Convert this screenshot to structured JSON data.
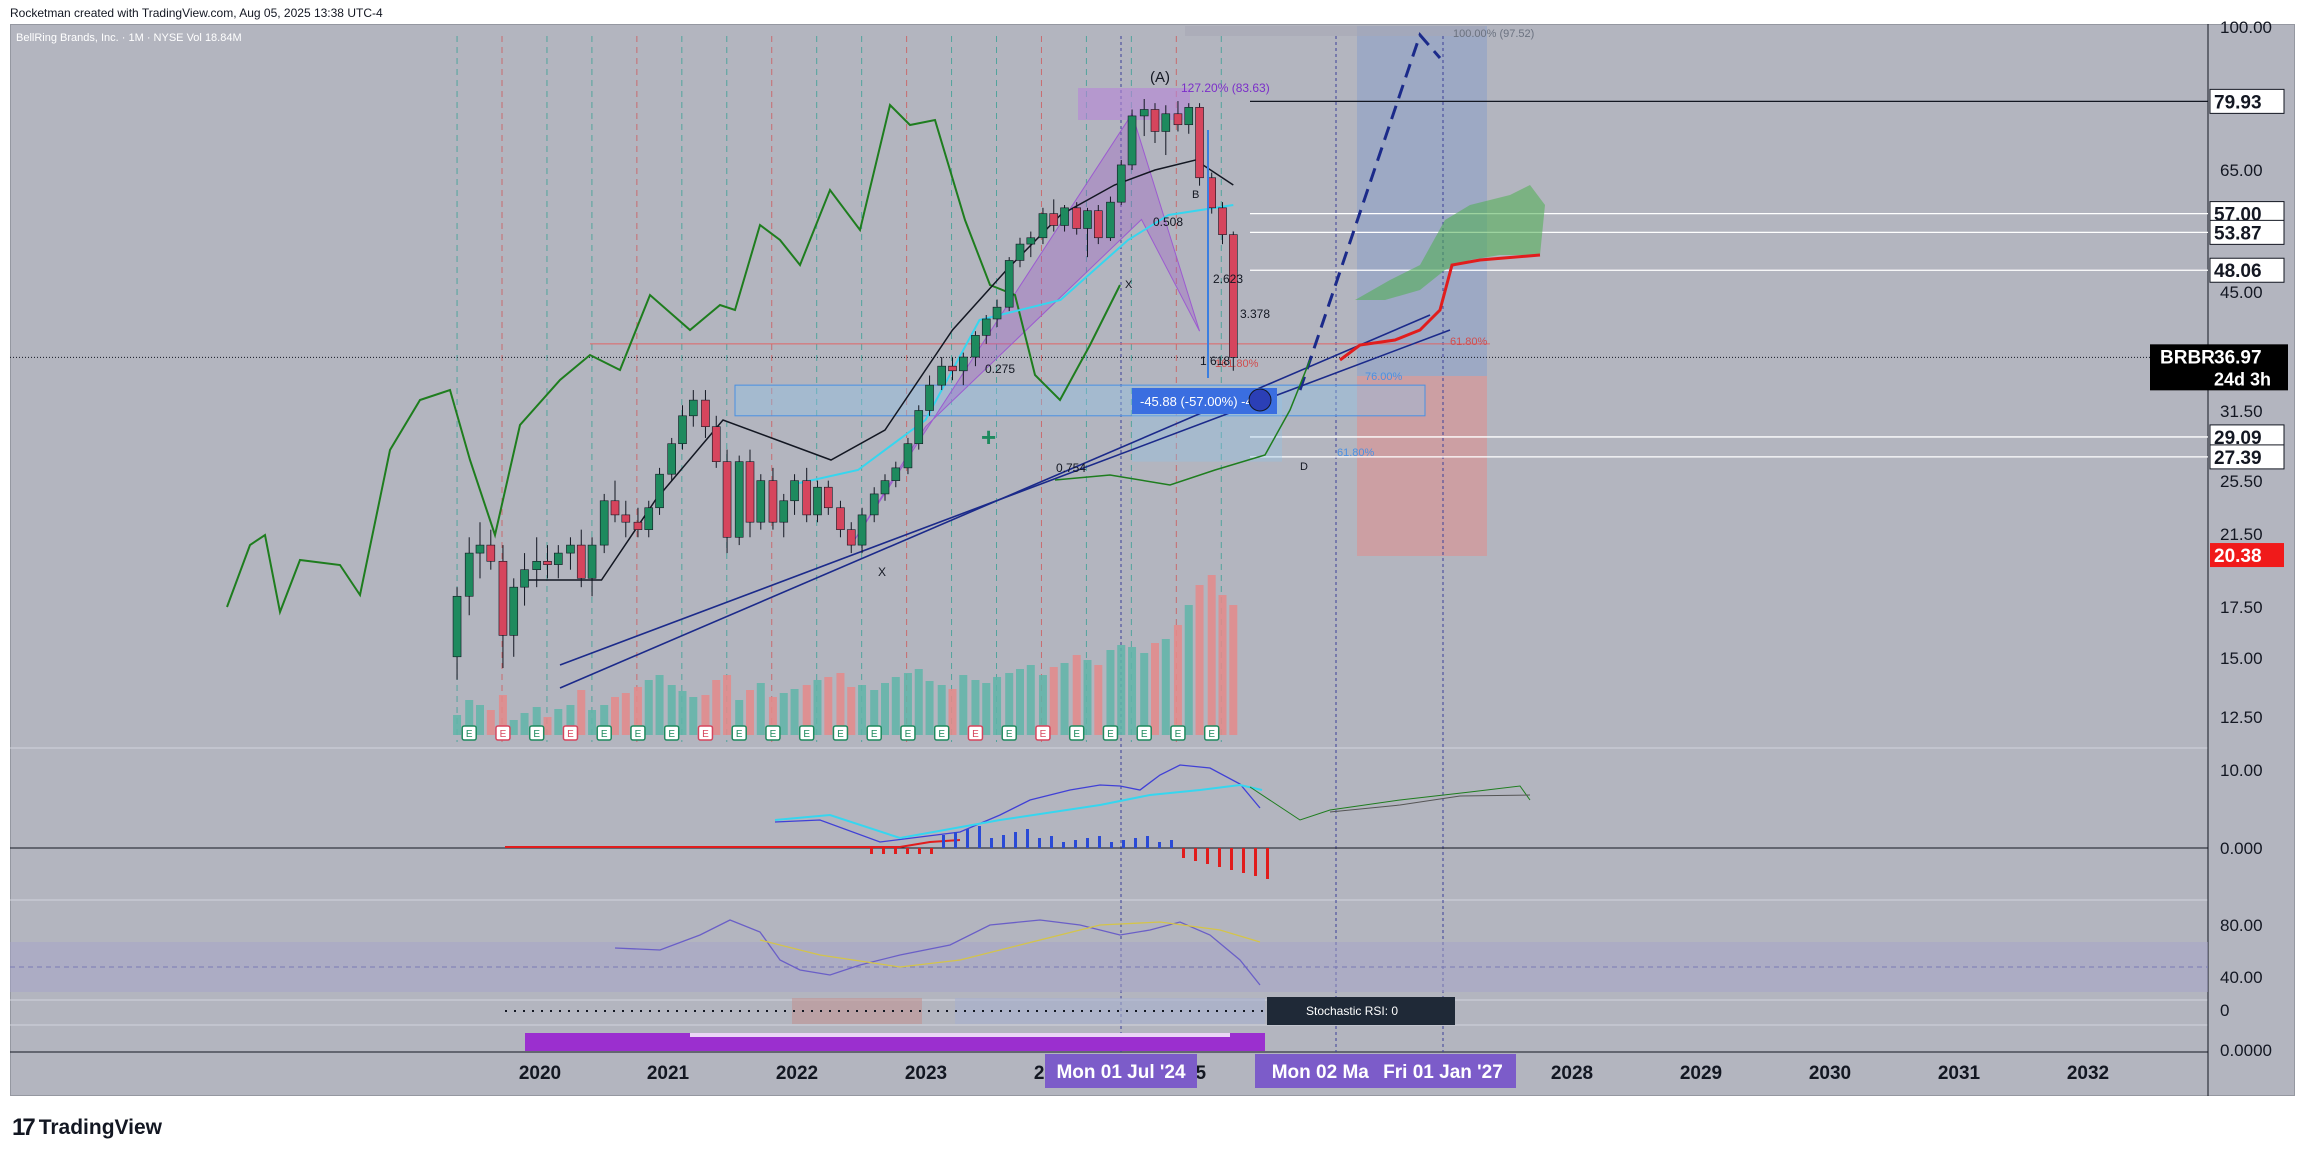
{
  "header": {
    "attribution": "Rocketman created with TradingView.com, Aug 05, 2025 13:38 UTC-4"
  },
  "symbol_info": {
    "name": "BellRing Brands, Inc. · 1M · NYSE",
    "volume_label": "Vol",
    "volume_value": "18.84M"
  },
  "brand": {
    "name": "TradingView"
  },
  "chart_data": {
    "type": "candlestick",
    "ticker": "BRBR",
    "x_ticks": [
      "2020",
      "2021",
      "2022",
      "2023",
      "2024",
      "2025",
      "2028",
      "2029",
      "2030",
      "2031",
      "2032"
    ],
    "price_axis_ticks": [
      "100.00",
      "65.00",
      "45.00",
      "31.50",
      "25.50",
      "21.50",
      "17.50",
      "15.00",
      "12.50"
    ],
    "price_badges": [
      {
        "label": "79.93",
        "value": 79.93,
        "style": "white"
      },
      {
        "label": "57.00",
        "value": 57.0,
        "style": "white"
      },
      {
        "label": "53.87",
        "value": 53.87,
        "style": "white"
      },
      {
        "label": "48.06",
        "value": 48.06,
        "style": "white"
      },
      {
        "label": "36.97",
        "value": 36.97,
        "style": "black",
        "ticker": "BRBR",
        "countdown": "24d 3h"
      },
      {
        "label": "29.09",
        "value": 29.09,
        "style": "white"
      },
      {
        "label": "27.39",
        "value": 27.39,
        "style": "white"
      },
      {
        "label": "20.38",
        "value": 20.38,
        "style": "red"
      }
    ],
    "macd_axis_ticks": [
      "10.00",
      "0.000"
    ],
    "rsi_axis_ticks": [
      "80.00",
      "40.00"
    ],
    "stoch_axis_ticks": [
      "0"
    ],
    "bottom_axis_ticks": [
      "0.0000"
    ],
    "date_badges": [
      "Mon 01 Jul '24",
      "Mon 02 Mar",
      "Fri 01 Jan '27"
    ],
    "stoch_label": "Stochastic RSI: 0",
    "pattern_labels": [
      "(A)",
      "(B)",
      "X",
      "X",
      "D",
      "B"
    ],
    "fib_labels": [
      "100.00% (97.52)",
      "61.80%",
      "76.00%",
      "61.80%",
      "161.80%",
      "127.20% (83.63)"
    ],
    "ratio_labels": [
      "0.508",
      "2.623",
      "3.378",
      "1.618",
      "0.275",
      "0.754"
    ],
    "measure_label": "-45.88 (-57.00%) -4",
    "candles": [
      {
        "t": 2019.83,
        "o": 15.0,
        "h": 18.5,
        "l": 14.0,
        "c": 18.0
      },
      {
        "t": 2019.92,
        "o": 18.0,
        "h": 21.5,
        "l": 17.0,
        "c": 20.5
      },
      {
        "t": 2020.0,
        "o": 20.5,
        "h": 22.5,
        "l": 19.0,
        "c": 21.0
      },
      {
        "t": 2020.08,
        "o": 21.0,
        "h": 22.0,
        "l": 19.5,
        "c": 20.0
      },
      {
        "t": 2020.17,
        "o": 20.0,
        "h": 21.0,
        "l": 14.5,
        "c": 16.0
      },
      {
        "t": 2020.25,
        "o": 16.0,
        "h": 19.0,
        "l": 15.0,
        "c": 18.5
      },
      {
        "t": 2020.33,
        "o": 18.5,
        "h": 20.5,
        "l": 17.5,
        "c": 19.5
      },
      {
        "t": 2020.42,
        "o": 19.5,
        "h": 21.5,
        "l": 18.5,
        "c": 20.0
      },
      {
        "t": 2020.5,
        "o": 20.0,
        "h": 21.0,
        "l": 19.0,
        "c": 19.8
      },
      {
        "t": 2020.58,
        "o": 19.8,
        "h": 21.0,
        "l": 19.0,
        "c": 20.5
      },
      {
        "t": 2020.67,
        "o": 20.5,
        "h": 21.5,
        "l": 19.5,
        "c": 21.0
      },
      {
        "t": 2020.75,
        "o": 21.0,
        "h": 22.0,
        "l": 18.5,
        "c": 19.0
      },
      {
        "t": 2020.83,
        "o": 19.0,
        "h": 21.5,
        "l": 18.0,
        "c": 21.0
      },
      {
        "t": 2020.92,
        "o": 21.0,
        "h": 24.5,
        "l": 20.5,
        "c": 24.0
      },
      {
        "t": 2021.0,
        "o": 24.0,
        "h": 25.5,
        "l": 22.5,
        "c": 23.0
      },
      {
        "t": 2021.08,
        "o": 23.0,
        "h": 24.0,
        "l": 21.5,
        "c": 22.5
      },
      {
        "t": 2021.17,
        "o": 22.5,
        "h": 23.5,
        "l": 21.5,
        "c": 22.0
      },
      {
        "t": 2021.25,
        "o": 22.0,
        "h": 24.0,
        "l": 21.5,
        "c": 23.5
      },
      {
        "t": 2021.33,
        "o": 23.5,
        "h": 26.5,
        "l": 23.0,
        "c": 26.0
      },
      {
        "t": 2021.42,
        "o": 26.0,
        "h": 29.0,
        "l": 25.5,
        "c": 28.5
      },
      {
        "t": 2021.5,
        "o": 28.5,
        "h": 32.0,
        "l": 28.0,
        "c": 31.0
      },
      {
        "t": 2021.58,
        "o": 31.0,
        "h": 33.5,
        "l": 30.0,
        "c": 32.5
      },
      {
        "t": 2021.67,
        "o": 32.5,
        "h": 33.5,
        "l": 29.0,
        "c": 30.0
      },
      {
        "t": 2021.75,
        "o": 30.0,
        "h": 31.0,
        "l": 26.5,
        "c": 27.0
      },
      {
        "t": 2021.83,
        "o": 27.0,
        "h": 28.0,
        "l": 20.5,
        "c": 21.5
      },
      {
        "t": 2021.92,
        "o": 21.5,
        "h": 27.5,
        "l": 21.0,
        "c": 27.0
      },
      {
        "t": 2022.0,
        "o": 27.0,
        "h": 28.0,
        "l": 21.5,
        "c": 22.5
      },
      {
        "t": 2022.08,
        "o": 22.5,
        "h": 26.0,
        "l": 22.0,
        "c": 25.5
      },
      {
        "t": 2022.17,
        "o": 25.5,
        "h": 26.5,
        "l": 22.0,
        "c": 22.5
      },
      {
        "t": 2022.25,
        "o": 22.5,
        "h": 24.5,
        "l": 21.5,
        "c": 24.0
      },
      {
        "t": 2022.33,
        "o": 24.0,
        "h": 26.0,
        "l": 23.0,
        "c": 25.5
      },
      {
        "t": 2022.42,
        "o": 25.5,
        "h": 26.5,
        "l": 22.5,
        "c": 23.0
      },
      {
        "t": 2022.5,
        "o": 23.0,
        "h": 25.5,
        "l": 22.5,
        "c": 25.0
      },
      {
        "t": 2022.58,
        "o": 25.0,
        "h": 25.5,
        "l": 23.0,
        "c": 23.5
      },
      {
        "t": 2022.67,
        "o": 23.5,
        "h": 24.0,
        "l": 21.5,
        "c": 22.0
      },
      {
        "t": 2022.75,
        "o": 22.0,
        "h": 22.5,
        "l": 20.5,
        "c": 21.0
      },
      {
        "t": 2022.83,
        "o": 21.0,
        "h": 23.5,
        "l": 20.5,
        "c": 23.0
      },
      {
        "t": 2022.92,
        "o": 23.0,
        "h": 25.0,
        "l": 22.5,
        "c": 24.5
      },
      {
        "t": 2023.0,
        "o": 24.5,
        "h": 26.0,
        "l": 24.0,
        "c": 25.5
      },
      {
        "t": 2023.08,
        "o": 25.5,
        "h": 27.0,
        "l": 25.0,
        "c": 26.5
      },
      {
        "t": 2023.17,
        "o": 26.5,
        "h": 29.0,
        "l": 26.0,
        "c": 28.5
      },
      {
        "t": 2023.25,
        "o": 28.5,
        "h": 32.0,
        "l": 28.0,
        "c": 31.5
      },
      {
        "t": 2023.33,
        "o": 31.5,
        "h": 35.0,
        "l": 31.0,
        "c": 34.0
      },
      {
        "t": 2023.42,
        "o": 34.0,
        "h": 37.0,
        "l": 33.5,
        "c": 36.0
      },
      {
        "t": 2023.5,
        "o": 36.0,
        "h": 37.0,
        "l": 34.5,
        "c": 35.5
      },
      {
        "t": 2023.58,
        "o": 35.5,
        "h": 37.5,
        "l": 34.0,
        "c": 37.0
      },
      {
        "t": 2023.67,
        "o": 37.0,
        "h": 40.0,
        "l": 36.0,
        "c": 39.5
      },
      {
        "t": 2023.75,
        "o": 39.5,
        "h": 42.0,
        "l": 38.5,
        "c": 41.5
      },
      {
        "t": 2023.83,
        "o": 41.5,
        "h": 44.0,
        "l": 40.5,
        "c": 43.0
      },
      {
        "t": 2023.92,
        "o": 43.0,
        "h": 50.0,
        "l": 42.5,
        "c": 49.5
      },
      {
        "t": 2024.0,
        "o": 49.5,
        "h": 53.0,
        "l": 48.5,
        "c": 52.0
      },
      {
        "t": 2024.08,
        "o": 52.0,
        "h": 54.0,
        "l": 50.0,
        "c": 53.0
      },
      {
        "t": 2024.17,
        "o": 53.0,
        "h": 58.0,
        "l": 52.0,
        "c": 57.0
      },
      {
        "t": 2024.25,
        "o": 57.0,
        "h": 59.5,
        "l": 54.0,
        "c": 55.0
      },
      {
        "t": 2024.33,
        "o": 55.0,
        "h": 58.5,
        "l": 54.0,
        "c": 58.0
      },
      {
        "t": 2024.42,
        "o": 58.0,
        "h": 59.0,
        "l": 53.5,
        "c": 54.5
      },
      {
        "t": 2024.5,
        "o": 54.5,
        "h": 58.0,
        "l": 50.0,
        "c": 57.5
      },
      {
        "t": 2024.58,
        "o": 57.5,
        "h": 58.5,
        "l": 52.0,
        "c": 53.0
      },
      {
        "t": 2024.67,
        "o": 53.0,
        "h": 60.0,
        "l": 52.5,
        "c": 59.0
      },
      {
        "t": 2024.75,
        "o": 59.0,
        "h": 67.0,
        "l": 58.5,
        "c": 66.0
      },
      {
        "t": 2024.83,
        "o": 66.0,
        "h": 78.0,
        "l": 65.0,
        "c": 76.5
      },
      {
        "t": 2024.92,
        "o": 76.5,
        "h": 80.5,
        "l": 72.0,
        "c": 78.0
      },
      {
        "t": 2025.0,
        "o": 78.0,
        "h": 79.5,
        "l": 70.5,
        "c": 73.0
      },
      {
        "t": 2025.08,
        "o": 73.0,
        "h": 79.0,
        "l": 68.0,
        "c": 77.0
      },
      {
        "t": 2025.17,
        "o": 77.0,
        "h": 80.0,
        "l": 73.0,
        "c": 74.5
      },
      {
        "t": 2025.25,
        "o": 74.5,
        "h": 79.5,
        "l": 72.5,
        "c": 78.5
      },
      {
        "t": 2025.33,
        "o": 78.5,
        "h": 79.5,
        "l": 62.0,
        "c": 63.5
      },
      {
        "t": 2025.42,
        "o": 63.5,
        "h": 64.5,
        "l": 57.0,
        "c": 58.0
      },
      {
        "t": 2025.5,
        "o": 58.0,
        "h": 59.0,
        "l": 52.0,
        "c": 53.5
      },
      {
        "t": 2025.58,
        "o": 53.5,
        "h": 54.0,
        "l": 35.5,
        "c": 36.97
      }
    ]
  }
}
